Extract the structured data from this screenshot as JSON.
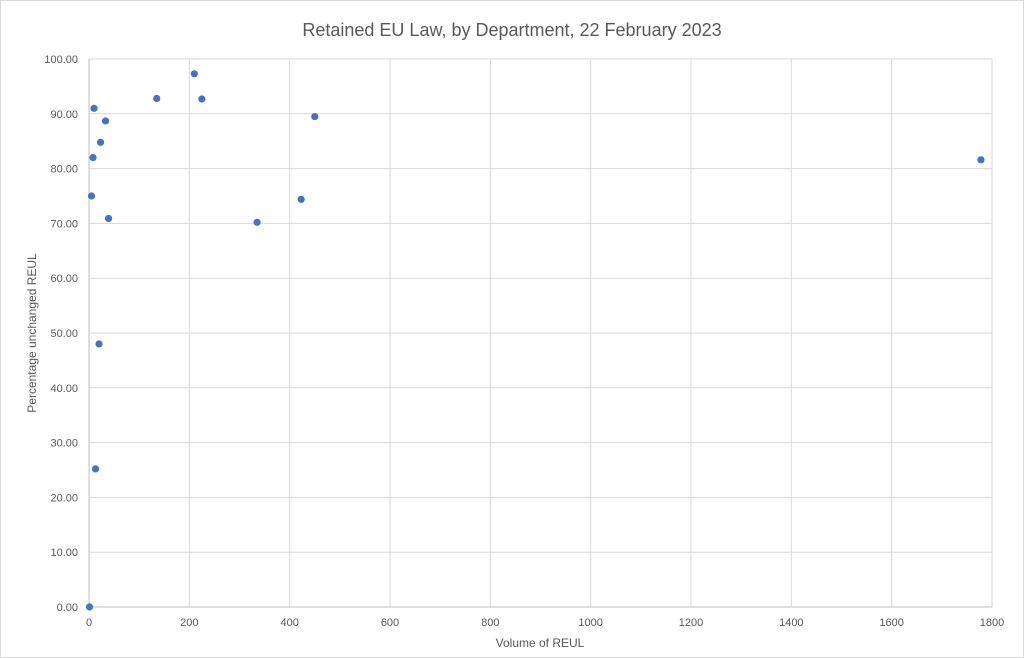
{
  "chart_data": {
    "type": "scatter",
    "title": "Retained EU Law, by Department, 22 February 2023",
    "xlabel": "Volume of REUL",
    "ylabel": "Percentage unchanged REUL",
    "xlim": [
      0,
      1800
    ],
    "ylim": [
      0,
      100
    ],
    "x_ticks": [
      0,
      200,
      400,
      600,
      800,
      1000,
      1200,
      1400,
      1600,
      1800
    ],
    "y_ticks": [
      0,
      10,
      20,
      30,
      40,
      50,
      60,
      70,
      80,
      90,
      100
    ],
    "x_tick_labels": [
      "0",
      "200",
      "400",
      "600",
      "800",
      "1000",
      "1200",
      "1400",
      "1600",
      "1800"
    ],
    "y_tick_labels": [
      "0.00",
      "10.00",
      "20.00",
      "30.00",
      "40.00",
      "50.00",
      "60.00",
      "70.00",
      "80.00",
      "90.00",
      "100.00"
    ],
    "grid": true,
    "point_color": "#4472c4",
    "points": [
      {
        "x": 1,
        "y": 0
      },
      {
        "x": 5,
        "y": 75.0
      },
      {
        "x": 8,
        "y": 82.0
      },
      {
        "x": 10,
        "y": 91.0
      },
      {
        "x": 13,
        "y": 25.2
      },
      {
        "x": 20,
        "y": 48.0
      },
      {
        "x": 23,
        "y": 84.8
      },
      {
        "x": 33,
        "y": 88.7
      },
      {
        "x": 39,
        "y": 70.9
      },
      {
        "x": 135,
        "y": 92.8
      },
      {
        "x": 210,
        "y": 97.3
      },
      {
        "x": 225,
        "y": 92.7
      },
      {
        "x": 335,
        "y": 70.2
      },
      {
        "x": 423,
        "y": 74.4
      },
      {
        "x": 450,
        "y": 89.5
      },
      {
        "x": 1778,
        "y": 81.6
      }
    ]
  }
}
